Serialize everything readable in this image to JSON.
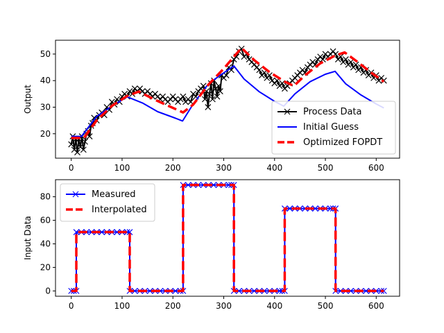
{
  "chart_data": [
    {
      "type": "line",
      "title": "",
      "xlabel": "",
      "ylabel": "Output",
      "xlim": [
        -31,
        646
      ],
      "ylim": [
        10.8,
        55.2
      ],
      "xticks": [
        0,
        100,
        200,
        300,
        400,
        500,
        600
      ],
      "yticks": [
        20,
        30,
        40,
        50
      ],
      "legend_position": "lower-right",
      "series": [
        {
          "name": "Process Data",
          "color": "#000000",
          "marker": "x",
          "x": [
            0,
            3,
            6,
            9,
            12,
            15,
            18,
            21,
            24,
            27,
            30,
            33,
            36,
            39,
            42,
            45,
            50,
            55,
            60,
            65,
            70,
            75,
            80,
            85,
            90,
            95,
            100,
            105,
            110,
            115,
            120,
            125,
            130,
            135,
            140,
            145,
            150,
            155,
            160,
            165,
            170,
            175,
            180,
            185,
            190,
            195,
            200,
            205,
            210,
            215,
            220,
            225,
            230,
            235,
            240,
            245,
            250,
            255,
            260,
            263,
            266,
            269,
            272,
            275,
            278,
            281,
            284,
            287,
            290,
            293,
            296,
            300,
            305,
            310,
            315,
            320,
            325,
            330,
            335,
            340,
            345,
            350,
            355,
            360,
            365,
            370,
            375,
            380,
            385,
            390,
            395,
            400,
            405,
            410,
            415,
            420,
            425,
            430,
            435,
            440,
            445,
            450,
            455,
            460,
            465,
            470,
            475,
            480,
            485,
            490,
            495,
            500,
            505,
            510,
            515,
            520,
            525,
            530,
            535,
            540,
            545,
            550,
            555,
            560,
            565,
            570,
            575,
            580,
            585,
            590,
            595,
            600,
            605,
            610,
            615
          ],
          "y": [
            16,
            19,
            14,
            18,
            13,
            18,
            15,
            19,
            14,
            17,
            20,
            21,
            19,
            23,
            24,
            26,
            25,
            27,
            28,
            27,
            30,
            29,
            32,
            31,
            33,
            32,
            34,
            35,
            34,
            36,
            35,
            37,
            36,
            37,
            36,
            35,
            36,
            35,
            34,
            35,
            34,
            33,
            34,
            33,
            32,
            33,
            34,
            33,
            32,
            33,
            34,
            32,
            33,
            32,
            35,
            34,
            36,
            37,
            38,
            33,
            36,
            30,
            35,
            39,
            33,
            40,
            37,
            34,
            38,
            36,
            42,
            41,
            42,
            45,
            44,
            48,
            49,
            51,
            52,
            49,
            50,
            48,
            47,
            46,
            45,
            44,
            42,
            43,
            41,
            42,
            40,
            39,
            40,
            38,
            39,
            37,
            38,
            39,
            40,
            41,
            42,
            43,
            44,
            43,
            45,
            46,
            47,
            46,
            48,
            49,
            48,
            50,
            49,
            50,
            51,
            50,
            48,
            49,
            47,
            48,
            46,
            47,
            45,
            46,
            44,
            45,
            43,
            44,
            42,
            43,
            41,
            42,
            40,
            41,
            40
          ]
        },
        {
          "name": "Initial Guess",
          "color": "#0000ff",
          "x": [
            0,
            20,
            50,
            80,
            110,
            140,
            170,
            200,
            219,
            240,
            270,
            290,
            310,
            320,
            340,
            370,
            400,
            418,
            440,
            470,
            500,
            519,
            540,
            570,
            600,
            615
          ],
          "y": [
            19,
            19,
            26.5,
            30.4,
            33.9,
            31.6,
            28.3,
            26.2,
            24.8,
            31.2,
            38.8,
            41.6,
            44.2,
            45.5,
            40.6,
            35.8,
            32.2,
            30.4,
            35,
            39.6,
            42.4,
            43.5,
            38.8,
            34.6,
            31.2,
            29.7
          ]
        },
        {
          "name": "Optimized FOPDT",
          "color": "#ff0000",
          "dashed": true,
          "x": [
            0,
            25,
            50,
            80,
            110,
            133,
            160,
            190,
            220,
            240,
            270,
            300,
            320,
            335,
            360,
            390,
            420,
            438,
            460,
            490,
            520,
            538,
            560,
            590,
            615
          ],
          "y": [
            18.4,
            18.4,
            25,
            30.5,
            34.2,
            35.9,
            33.2,
            30.6,
            28,
            31,
            38.5,
            44.5,
            49,
            52.3,
            47.7,
            43.2,
            39.6,
            38,
            42,
            46.5,
            49.5,
            50.6,
            47.5,
            43,
            39.6
          ]
        }
      ]
    },
    {
      "type": "line",
      "title": "",
      "xlabel": "",
      "ylabel": "Input Data",
      "xlim": [
        -31,
        646
      ],
      "ylim": [
        -4.5,
        94.5
      ],
      "xticks": [
        0,
        100,
        200,
        300,
        400,
        500,
        600
      ],
      "yticks": [
        0,
        20,
        40,
        60,
        80
      ],
      "legend_position": "upper-left",
      "series": [
        {
          "name": "Measured",
          "color": "#0000ff",
          "marker": "x",
          "x": [
            0,
            5,
            10,
            10,
            20,
            30,
            40,
            50,
            60,
            70,
            80,
            90,
            100,
            110,
            115,
            115,
            125,
            135,
            145,
            155,
            165,
            175,
            185,
            195,
            205,
            215,
            220,
            220,
            230,
            240,
            250,
            260,
            270,
            280,
            290,
            300,
            310,
            315,
            320,
            320,
            330,
            340,
            350,
            360,
            370,
            380,
            390,
            400,
            410,
            415,
            420,
            420,
            430,
            440,
            450,
            460,
            470,
            480,
            490,
            500,
            510,
            515,
            520,
            520,
            530,
            540,
            550,
            560,
            570,
            580,
            590,
            600,
            610,
            615
          ],
          "y": [
            0,
            0,
            0,
            50,
            50,
            50,
            50,
            50,
            50,
            50,
            50,
            50,
            50,
            50,
            50,
            0,
            0,
            0,
            0,
            0,
            0,
            0,
            0,
            0,
            0,
            0,
            0,
            90,
            90,
            90,
            90,
            90,
            90,
            90,
            90,
            90,
            90,
            90,
            90,
            0,
            0,
            0,
            0,
            0,
            0,
            0,
            0,
            0,
            0,
            0,
            0,
            70,
            70,
            70,
            70,
            70,
            70,
            70,
            70,
            70,
            70,
            70,
            70,
            0,
            0,
            0,
            0,
            0,
            0,
            0,
            0,
            0,
            0,
            0
          ]
        },
        {
          "name": "Interpolated",
          "color": "#ff0000",
          "dashed": true,
          "x": [
            0,
            10,
            10,
            115,
            115,
            220,
            220,
            320,
            320,
            420,
            420,
            520,
            520,
            615
          ],
          "y": [
            0,
            0,
            50,
            50,
            0,
            0,
            90,
            90,
            0,
            0,
            70,
            70,
            0,
            0
          ]
        }
      ]
    }
  ]
}
